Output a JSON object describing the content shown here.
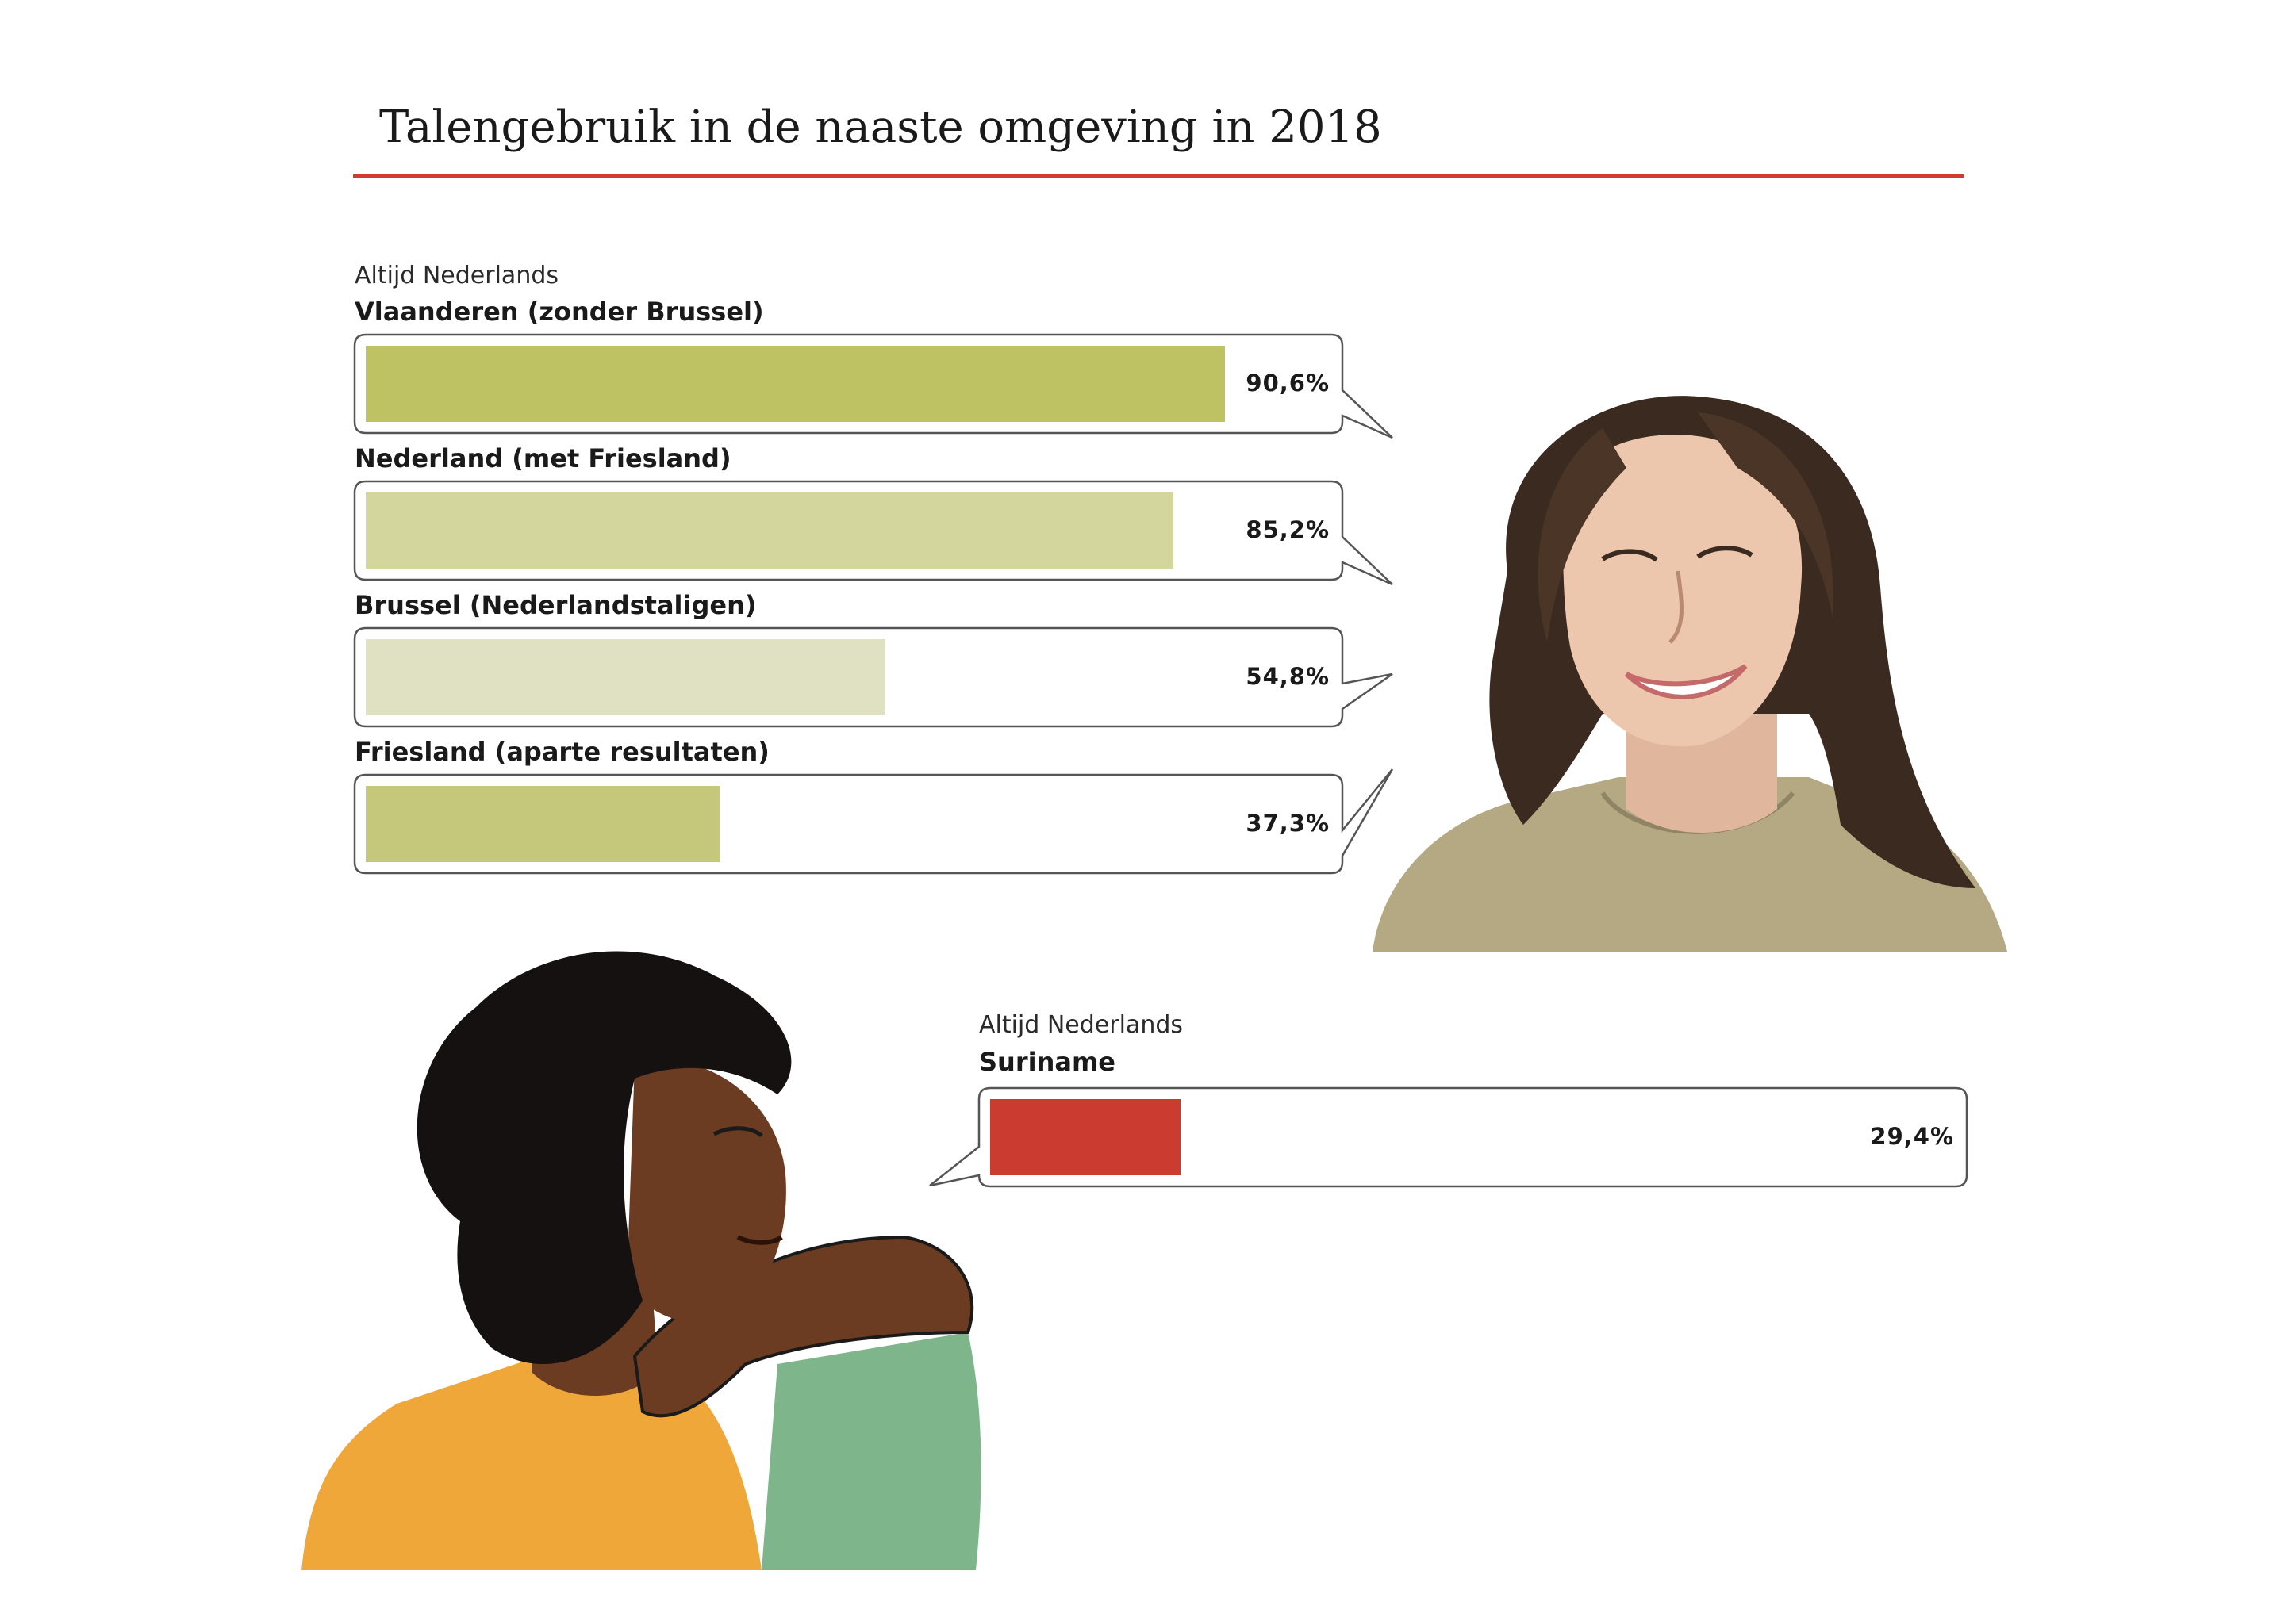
{
  "chart_data": [
    {
      "type": "bar",
      "orientation": "horizontal",
      "title": "Talengebruik in de naaste omgeving in 2018",
      "group_label": "Altijd Nederlands",
      "categories": [
        "Vlaanderen (zonder Brussel)",
        "Nederland (met Friesland)",
        "Brussel (Nederlandstaligen)",
        "Friesland (aparte resultaten)"
      ],
      "values": [
        90.6,
        85.2,
        54.8,
        37.3
      ],
      "value_labels": [
        "90,6%",
        "85,2%",
        "54,8%",
        "37,3%"
      ],
      "colors": [
        "#bec262",
        "#d4d79d",
        "#dfe1c2",
        "#c5c87a"
      ],
      "unit": "%",
      "xlim": [
        0,
        100
      ],
      "grid": false
    },
    {
      "type": "bar",
      "orientation": "horizontal",
      "group_label": "Altijd Nederlands",
      "categories": [
        "Suriname"
      ],
      "values": [
        29.4
      ],
      "value_labels": [
        "29,4%"
      ],
      "colors": [
        "#cc3b30"
      ],
      "unit": "%",
      "xlim": [
        0,
        100
      ],
      "grid": false
    }
  ],
  "illustrations": [
    {
      "name": "smiling-woman-portrait-icon"
    },
    {
      "name": "woman-curly-hair-portrait-icon"
    }
  ],
  "accent_color": "#d13c32"
}
